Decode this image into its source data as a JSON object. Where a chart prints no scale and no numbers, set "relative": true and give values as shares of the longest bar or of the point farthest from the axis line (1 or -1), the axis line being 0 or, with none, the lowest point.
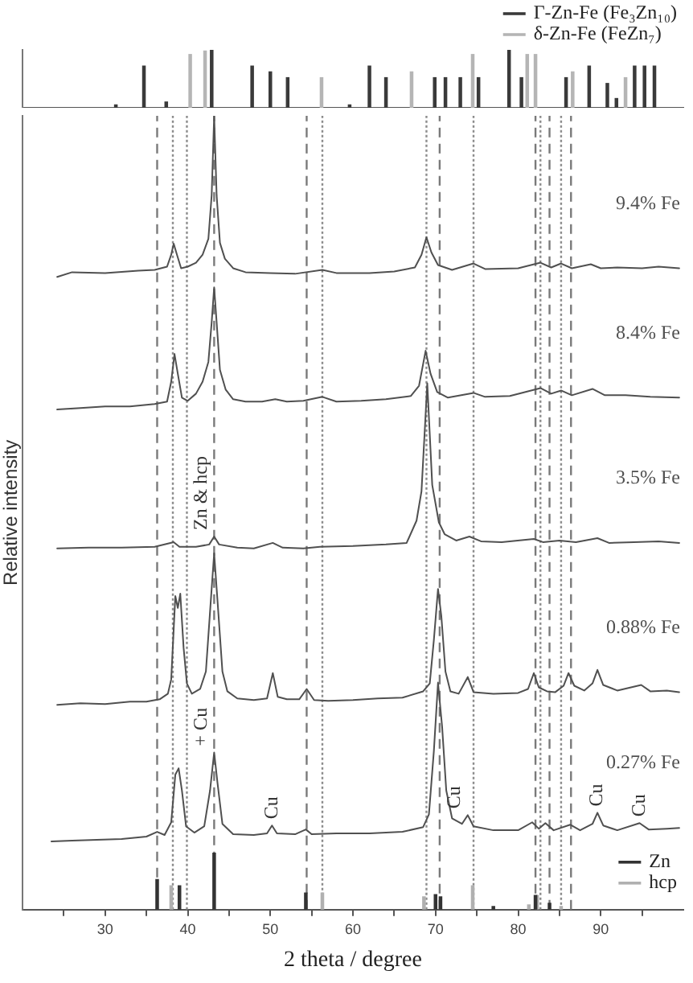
{
  "chart_data": [
    {
      "type": "bar",
      "relative": true,
      "xlim": [
        20,
        100
      ],
      "legend": "top right",
      "series": [
        {
          "name": "Γ-Zn-Fe (Fe₃Zn₁₀)",
          "color": "#3a3a3a",
          "x": [
            31.3,
            34.7,
            37.4,
            42.9,
            47.8,
            50.0,
            52.1,
            59.6,
            62.0,
            64.0,
            69.9,
            71.2,
            73.0,
            75.2,
            78.9,
            80.4,
            85.8,
            88.6,
            90.8,
            91.9,
            94.1,
            95.3,
            96.5
          ],
          "values": [
            0.05,
            0.72,
            0.1,
            1.0,
            0.72,
            0.62,
            0.52,
            0.05,
            0.72,
            0.52,
            0.52,
            0.52,
            0.52,
            0.52,
            1.0,
            0.52,
            0.52,
            0.72,
            0.42,
            0.16,
            0.72,
            0.72,
            0.72
          ]
        },
        {
          "name": "δ-Zn-Fe (FeZn₇)",
          "color": "#b5b5b5",
          "x": [
            40.3,
            42.1,
            56.2,
            67.1,
            74.5,
            81.1,
            82.1,
            86.6,
            93.0
          ],
          "values": [
            0.92,
            0.98,
            0.52,
            0.62,
            0.92,
            0.92,
            0.92,
            0.62,
            0.52
          ]
        }
      ]
    },
    {
      "type": "line",
      "relative": true,
      "xlabel": "2 theta / degree",
      "ylabel": "Relative intensity",
      "xlim": [
        20,
        100
      ],
      "xticks": [
        {
          "value": 25,
          "label": null
        },
        30,
        {
          "value": 35,
          "label": null
        },
        40,
        {
          "value": 45,
          "label": null
        },
        50,
        {
          "value": 55,
          "label": null
        },
        60,
        {
          "value": 65,
          "label": null
        },
        70,
        {
          "value": 75,
          "label": null
        },
        80,
        {
          "value": 85,
          "label": null
        },
        90,
        {
          "value": 95,
          "label": null
        }
      ],
      "marker": "none",
      "legend": "bottom right",
      "series": [
        {
          "name": "9.4% Fe",
          "color": "#505050",
          "x": [
            24.2,
            26,
            30,
            34,
            36,
            37.5,
            38.0,
            38.3,
            38.7,
            39.2,
            40.0,
            41.0,
            41.8,
            42.5,
            42.9,
            43.2,
            43.5,
            43.9,
            44.5,
            45.5,
            47,
            50,
            53,
            56.3,
            58,
            62,
            65,
            67.5,
            68.3,
            68.9,
            69.5,
            70.3,
            72,
            74.6,
            76,
            80,
            82.7,
            84,
            85.2,
            86.5,
            88.8,
            90,
            92,
            95,
            97,
            99.5
          ],
          "values": [
            0.797,
            0.803,
            0.802,
            0.805,
            0.806,
            0.81,
            0.825,
            0.839,
            0.825,
            0.808,
            0.81,
            0.815,
            0.825,
            0.845,
            0.9,
            1.0,
            0.9,
            0.84,
            0.82,
            0.808,
            0.803,
            0.802,
            0.801,
            0.806,
            0.802,
            0.802,
            0.804,
            0.809,
            0.825,
            0.847,
            0.828,
            0.812,
            0.806,
            0.814,
            0.807,
            0.808,
            0.815,
            0.809,
            0.814,
            0.808,
            0.813,
            0.808,
            0.809,
            0.808,
            0.81,
            0.808
          ]
        },
        {
          "name": "8.4% Fe",
          "color": "#505050",
          "x": [
            24.2,
            27,
            30,
            33,
            36,
            37.5,
            38.0,
            38.4,
            38.8,
            39.3,
            40.0,
            41.0,
            41.8,
            42.5,
            42.9,
            43.2,
            43.5,
            43.9,
            44.6,
            45.5,
            47,
            49,
            50.6,
            52,
            54,
            56.3,
            58,
            61,
            64,
            67,
            68.0,
            68.8,
            69.4,
            70.2,
            71.5,
            74.6,
            76,
            79,
            82.7,
            84,
            85.2,
            86.5,
            89.0,
            90.5,
            93,
            96,
            99.5
          ],
          "values": [
            0.63,
            0.632,
            0.634,
            0.634,
            0.637,
            0.64,
            0.665,
            0.7,
            0.675,
            0.645,
            0.641,
            0.65,
            0.665,
            0.69,
            0.74,
            0.784,
            0.74,
            0.68,
            0.655,
            0.643,
            0.64,
            0.64,
            0.643,
            0.64,
            0.641,
            0.646,
            0.64,
            0.641,
            0.643,
            0.647,
            0.66,
            0.704,
            0.675,
            0.652,
            0.645,
            0.651,
            0.646,
            0.647,
            0.657,
            0.65,
            0.654,
            0.648,
            0.656,
            0.648,
            0.648,
            0.646,
            0.645
          ]
        },
        {
          "name": "3.5% Fe",
          "color": "#505050",
          "x": [
            24.2,
            28,
            32,
            36,
            38.3,
            39,
            41,
            42.6,
            43.2,
            43.8,
            46,
            48,
            50.3,
            51.5,
            54,
            56,
            60,
            64,
            66.5,
            67.7,
            68.3,
            69.0,
            69.6,
            70.4,
            71.1,
            72.5,
            74.1,
            75.5,
            78,
            81.9,
            83,
            85,
            87,
            89.6,
            91,
            94,
            97,
            99.5
          ],
          "values": [
            0.455,
            0.456,
            0.456,
            0.457,
            0.463,
            0.457,
            0.457,
            0.46,
            0.47,
            0.46,
            0.456,
            0.455,
            0.462,
            0.456,
            0.455,
            0.457,
            0.458,
            0.46,
            0.462,
            0.49,
            0.527,
            0.663,
            0.535,
            0.488,
            0.473,
            0.465,
            0.47,
            0.464,
            0.463,
            0.467,
            0.463,
            0.465,
            0.463,
            0.468,
            0.462,
            0.463,
            0.464,
            0.462
          ]
        },
        {
          "name": "0.88% Fe",
          "color": "#505050",
          "x": [
            24.2,
            27,
            30,
            33,
            35,
            36.6,
            37.6,
            38.0,
            38.5,
            38.8,
            39.1,
            39.5,
            39.9,
            40.5,
            41.5,
            42.2,
            42.8,
            43.2,
            43.6,
            44.2,
            44.8,
            46,
            48,
            49.6,
            50.3,
            50.9,
            52,
            53.5,
            54.4,
            55.3,
            57,
            60,
            63,
            66,
            68.5,
            69.3,
            69.8,
            70.3,
            70.7,
            71.2,
            71.8,
            72.8,
            73.9,
            74.6,
            77,
            80,
            81.2,
            81.9,
            82.5,
            83.5,
            84.5,
            85.5,
            86.1,
            86.8,
            88,
            89.0,
            89.6,
            90.3,
            92,
            94.9,
            96,
            98,
            99.5
          ],
          "values": [
            0.258,
            0.26,
            0.259,
            0.262,
            0.262,
            0.265,
            0.272,
            0.29,
            0.395,
            0.38,
            0.398,
            0.33,
            0.285,
            0.272,
            0.278,
            0.3,
            0.39,
            0.449,
            0.39,
            0.3,
            0.275,
            0.266,
            0.264,
            0.266,
            0.298,
            0.268,
            0.265,
            0.265,
            0.278,
            0.264,
            0.263,
            0.264,
            0.266,
            0.267,
            0.275,
            0.285,
            0.34,
            0.404,
            0.37,
            0.3,
            0.275,
            0.272,
            0.293,
            0.274,
            0.272,
            0.273,
            0.278,
            0.298,
            0.28,
            0.275,
            0.274,
            0.282,
            0.298,
            0.282,
            0.276,
            0.285,
            0.302,
            0.283,
            0.276,
            0.283,
            0.275,
            0.276,
            0.274
          ]
        },
        {
          "name": "0.27% Fe",
          "color": "#505050",
          "x": [
            23.5,
            26,
            29,
            32,
            35,
            36.3,
            37.2,
            38.0,
            38.5,
            38.9,
            39.3,
            39.8,
            40.8,
            42.0,
            42.7,
            43.2,
            43.6,
            44.2,
            45.5,
            48,
            49.6,
            50.2,
            50.8,
            53,
            54.3,
            55,
            58,
            62,
            66,
            68.5,
            69.2,
            69.8,
            70.3,
            70.8,
            71.3,
            72,
            73.2,
            73.9,
            74.6,
            77,
            80,
            81.7,
            82.5,
            83.3,
            84.3,
            86.3,
            87.5,
            89.0,
            89.6,
            90.3,
            92,
            94.7,
            95.8,
            98,
            99.5
          ],
          "values": [
            0.086,
            0.087,
            0.088,
            0.089,
            0.092,
            0.098,
            0.094,
            0.11,
            0.17,
            0.178,
            0.15,
            0.105,
            0.097,
            0.105,
            0.15,
            0.198,
            0.16,
            0.108,
            0.095,
            0.094,
            0.096,
            0.106,
            0.096,
            0.095,
            0.101,
            0.095,
            0.096,
            0.096,
            0.098,
            0.104,
            0.12,
            0.2,
            0.286,
            0.23,
            0.15,
            0.115,
            0.108,
            0.119,
            0.105,
            0.1,
            0.1,
            0.11,
            0.102,
            0.109,
            0.1,
            0.107,
            0.1,
            0.108,
            0.122,
            0.106,
            0.1,
            0.109,
            0.101,
            0.102,
            0.103
          ]
        },
        {
          "type": "bar",
          "name": "Zn",
          "color": "#333333",
          "x": [
            36.3,
            39.0,
            43.2,
            54.3,
            70.0,
            70.6,
            77.0,
            82.1,
            83.8
          ],
          "values": [
            0.038,
            0.03,
            0.071,
            0.021,
            0.019,
            0.016,
            0.004,
            0.018,
            0.008
          ]
        },
        {
          "type": "bar",
          "name": "hcp",
          "color": "#b0b0b0",
          "x": [
            38.0,
            56.3,
            68.6,
            74.5,
            81.3,
            82.3,
            85.2
          ],
          "values": [
            0.03,
            0.021,
            0.016,
            0.03,
            0.006,
            0.018,
            0.004
          ]
        }
      ],
      "ref_lines": [
        {
          "axis": "x",
          "value": 38.2,
          "line_style": "dotted",
          "color": "#8c8c8c"
        },
        {
          "axis": "x",
          "value": 39.9,
          "line_style": "dotted",
          "color": "#8c8c8c"
        },
        {
          "axis": "x",
          "value": 56.3,
          "line_style": "dotted",
          "color": "#8c8c8c"
        },
        {
          "axis": "x",
          "value": 68.9,
          "line_style": "dotted",
          "color": "#8c8c8c"
        },
        {
          "axis": "x",
          "value": 74.6,
          "line_style": "dotted",
          "color": "#8c8c8c"
        },
        {
          "axis": "x",
          "value": 82.7,
          "line_style": "dotted",
          "color": "#8c8c8c"
        },
        {
          "axis": "x",
          "value": 85.2,
          "line_style": "dotted",
          "color": "#8c8c8c"
        },
        {
          "axis": "x",
          "value": 36.3,
          "line_style": "dashed",
          "color": "#7a7a7a"
        },
        {
          "axis": "x",
          "value": 43.2,
          "line_style": "dashed",
          "color": "#7a7a7a"
        },
        {
          "axis": "x",
          "value": 54.4,
          "line_style": "dashed",
          "color": "#7a7a7a"
        },
        {
          "axis": "x",
          "value": 70.5,
          "line_style": "dashed",
          "color": "#7a7a7a"
        },
        {
          "axis": "x",
          "value": 82.1,
          "line_style": "dashed",
          "color": "#7a7a7a"
        },
        {
          "axis": "x",
          "value": 83.8,
          "line_style": "dashed",
          "color": "#7a7a7a"
        },
        {
          "axis": "x",
          "value": 86.4,
          "line_style": "dashed",
          "color": "#7a7a7a"
        }
      ],
      "annotations": [
        {
          "text": "Zn & hcp",
          "x": 43.2,
          "y": 0.47
        },
        {
          "text": "+ Cu",
          "x": 43.2,
          "y": 0.198
        },
        {
          "text": "Cu",
          "x": 50.2,
          "y": 0.106
        },
        {
          "text": "Cu",
          "x": 73.9,
          "y": 0.119
        },
        {
          "text": "Cu",
          "x": 89.6,
          "y": 0.122
        },
        {
          "text": "Cu",
          "x": 94.7,
          "y": 0.109
        }
      ]
    }
  ]
}
